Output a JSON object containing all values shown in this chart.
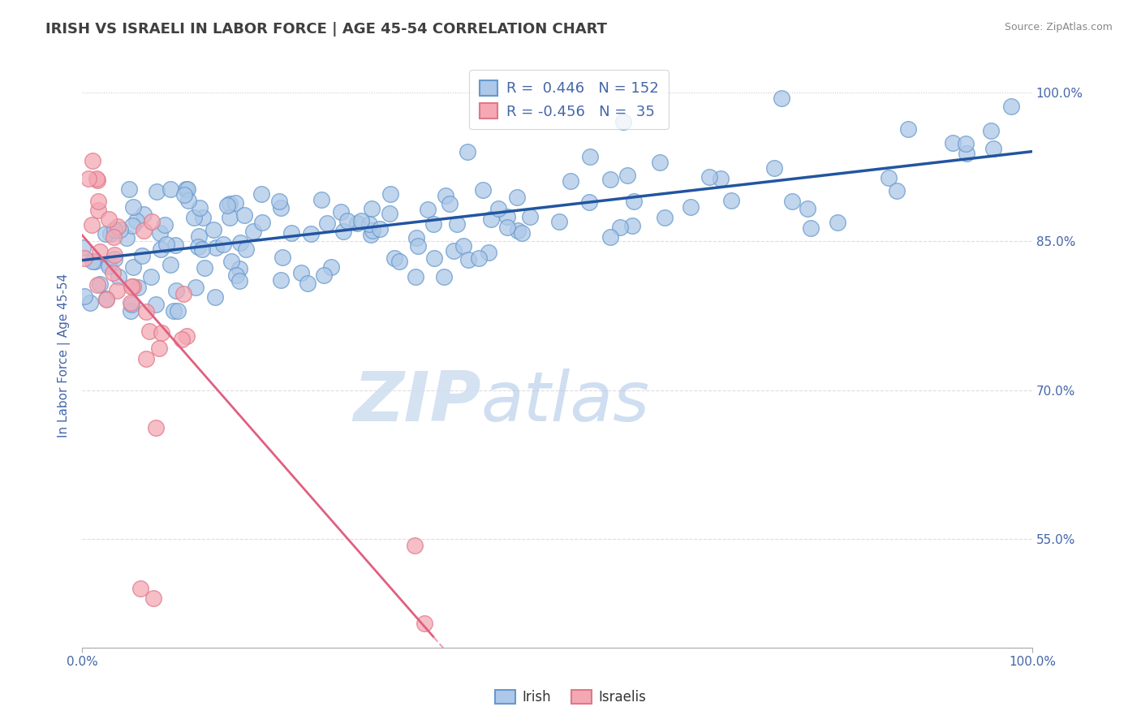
{
  "title": "IRISH VS ISRAELI IN LABOR FORCE | AGE 45-54 CORRELATION CHART",
  "source": "Source: ZipAtlas.com",
  "ylabel": "In Labor Force | Age 45-54",
  "xlim": [
    0.0,
    1.0
  ],
  "ylim": [
    0.44,
    1.03
  ],
  "yticks": [
    0.55,
    0.7,
    0.85,
    1.0
  ],
  "ytick_labels": [
    "55.0%",
    "70.0%",
    "85.0%",
    "100.0%"
  ],
  "irish_R": 0.446,
  "irish_N": 152,
  "israeli_R": -0.456,
  "israeli_N": 35,
  "irish_color": "#adc8e8",
  "irish_edge_color": "#6699cc",
  "israeli_color": "#f4a8b4",
  "israeli_edge_color": "#e07888",
  "irish_trend_color": "#2255a0",
  "israeli_trend_color": "#e06080",
  "dashed_trend_color": "#f0a0b0",
  "watermark_color": "#d0dff0",
  "background_color": "#ffffff",
  "title_color": "#404040",
  "title_fontsize": 13,
  "axis_label_color": "#4466aa",
  "tick_label_color": "#4466aa",
  "grid_color": "#dddddd",
  "top_dashed_color": "#cccccc"
}
